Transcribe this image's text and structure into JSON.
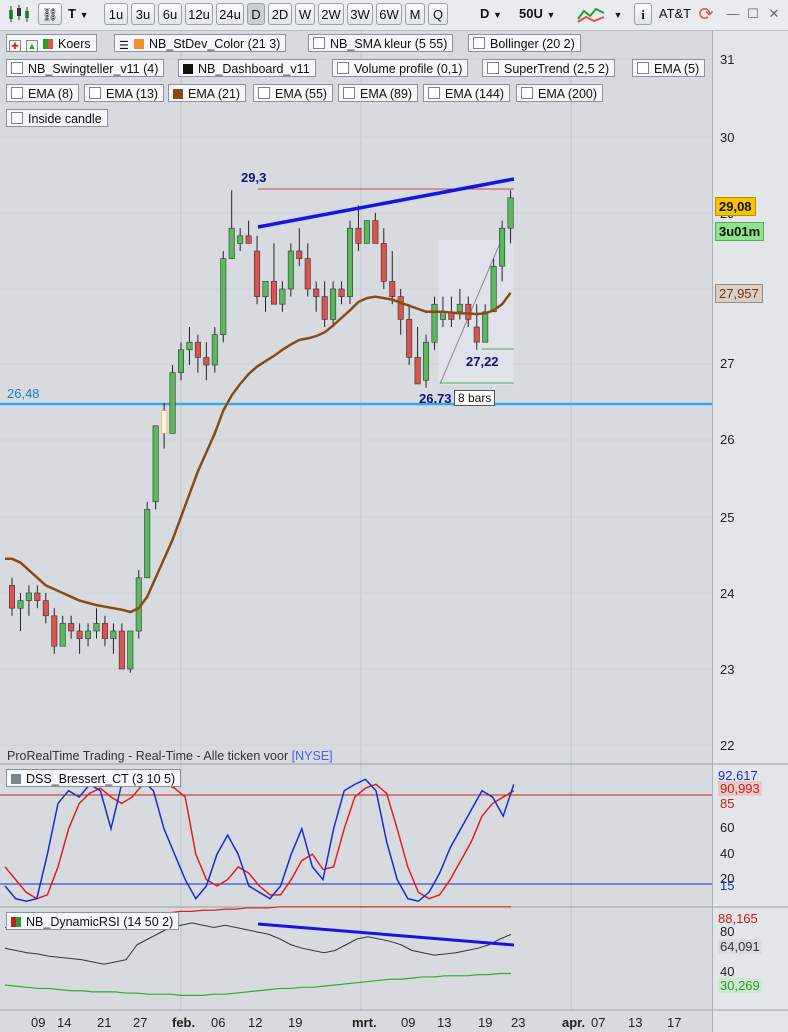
{
  "toolbar": {
    "instrument": "T",
    "timeframes": [
      "1u",
      "3u",
      "6u",
      "12u",
      "24u",
      "D",
      "2D",
      "W",
      "2W",
      "3W",
      "6W",
      "M",
      "Q"
    ],
    "active_timeframe": "D",
    "period": "D",
    "bars": "50U",
    "account": "AT&T",
    "window_min": "—",
    "window_max": "☐",
    "window_close": "✕"
  },
  "indicators": {
    "row1": [
      "Koers",
      "NB_StDev_Color (21 3)",
      "NB_SMA kleur (5 55)",
      "Bollinger (20 2)"
    ],
    "row2": [
      "NB_Swingteller_v11 (4)",
      "NB_Dashboard_v11",
      "Volume profile (0,1)",
      "SuperTrend (2,5 2)",
      "EMA (5)"
    ],
    "row3": [
      "EMA (8)",
      "EMA (13)",
      "EMA (21)",
      "EMA (55)",
      "EMA (89)",
      "EMA (144)",
      "EMA (200)"
    ],
    "row4": [
      "Inside candle"
    ]
  },
  "price_panel": {
    "y_ticks": [
      "31",
      "30",
      "29",
      "28",
      "27",
      "26",
      "25",
      "24",
      "23",
      "22"
    ],
    "current_price": "29,08",
    "time_left": "3u01m",
    "ema_value": "27,957",
    "support_level": "26,48",
    "high_label": "29,3",
    "low_label": "26.73",
    "mid_label": "27,22",
    "bars_label": "8 bars",
    "colors": {
      "up": "#5cb85c",
      "down": "#d9534f",
      "ema21": "#8b4a14",
      "support": "#34a8e8",
      "trend": "#1414e6"
    }
  },
  "footer_text": "ProRealTime Trading - Real-Time - Alle ticken voor",
  "exchange": "[NYSE]",
  "dss_panel": {
    "title": "DSS_Bressert_CT (3 10 5)",
    "values": [
      "92,617",
      "90,993",
      "85",
      "15"
    ],
    "ticks": [
      "60",
      "40",
      "20"
    ]
  },
  "rsi_panel": {
    "title": "NB_DynamicRSI (14 50 2)",
    "values": [
      "88,165",
      "64,091",
      "30,269"
    ],
    "ticks": [
      "80",
      "40"
    ]
  },
  "x_axis": [
    "09",
    "14",
    "21",
    "27",
    "feb.",
    "06",
    "12",
    "19",
    "mrt.",
    "09",
    "13",
    "19",
    "23",
    "apr.",
    "07",
    "13",
    "17"
  ]
}
